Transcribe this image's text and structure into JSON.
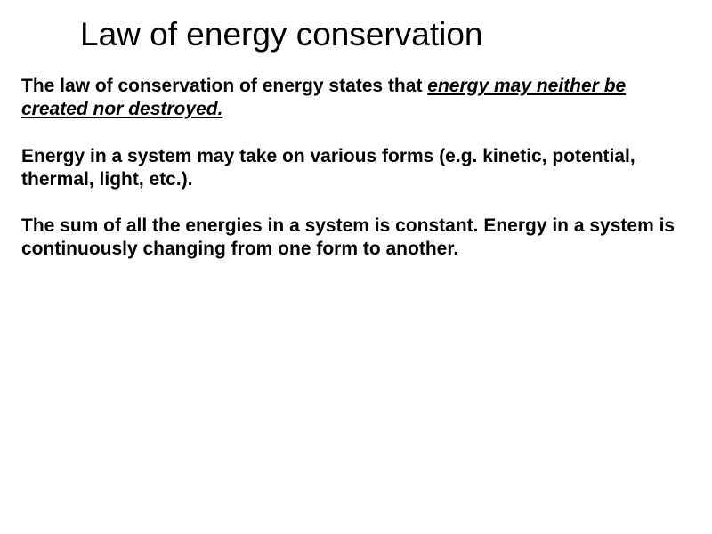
{
  "title": {
    "text": "Law of energy conservation",
    "fontsize": 37,
    "color": "#000000"
  },
  "body": {
    "fontsize": 21,
    "color": "#000000",
    "line_height": 1.25,
    "paragraphs": [
      {
        "plain": "The law of conservation of energy states that ",
        "underlined": "energy may neither be created nor destroyed. "
      },
      {
        "plain": "Energy in a system may take on various forms (e.g. kinetic, potential, thermal, light, etc.)."
      },
      {
        "plain": "The sum of all the energies in a system is constant.  Energy in a system is continuously changing from one form to another."
      }
    ]
  },
  "background_color": "#ffffff"
}
